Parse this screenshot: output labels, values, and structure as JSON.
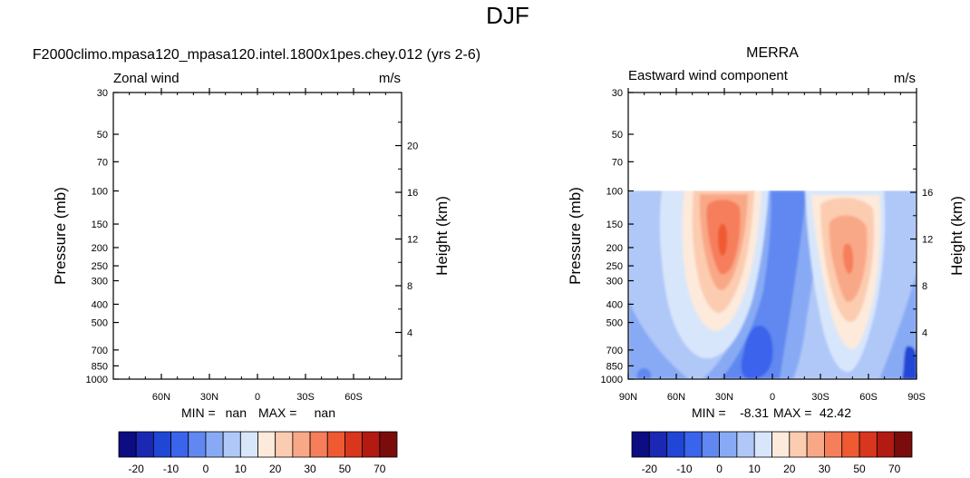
{
  "title": "DJF",
  "panels": [
    {
      "title": "F2000climo.mpasa120_mpasa120.intel.1800x1pes.chey.012 (yrs 2-6)",
      "left_label": "Zonal wind",
      "units": "m/s",
      "ylabel": "Pressure (mb)",
      "y2label": "Height (km)",
      "min_label": "MIN =",
      "min_value": "nan",
      "max_label": "MAX =",
      "max_value": "nan"
    },
    {
      "title": "MERRA",
      "left_label": "Eastward wind component",
      "units": "m/s",
      "ylabel": "Pressure (mb)",
      "y2label": "Height (km)",
      "min_label": "MIN =",
      "min_value": "-8.31",
      "max_label": "MAX =",
      "max_value": "42.42"
    }
  ],
  "colorbar": {
    "colors": [
      "#0c0c83",
      "#1a28b4",
      "#2046d6",
      "#3a64ec",
      "#6088f0",
      "#88aaf4",
      "#b0c8f8",
      "#d8e6fb",
      "#fdeadb",
      "#fcccb1",
      "#f9a887",
      "#f67e5b",
      "#ef5a32",
      "#d8361e",
      "#b21a12",
      "#7a0c0c"
    ],
    "labels": [
      "-20",
      "-10",
      "0",
      "10",
      "20",
      "30",
      "50",
      "70"
    ]
  },
  "chart_data": [
    {
      "type": "contour",
      "panel": "model",
      "x_ticks": [
        "60N",
        "30N",
        "0",
        "30S",
        "60S"
      ],
      "x_tick_degrees": [
        60,
        30,
        0,
        -30,
        -60
      ],
      "xlim_degrees": [
        90,
        -90
      ],
      "x_tick_labels_visible_at_edges": false,
      "pressure_ticks": [
        30,
        50,
        70,
        100,
        150,
        200,
        250,
        300,
        400,
        500,
        700,
        850,
        1000
      ],
      "height_ticks_km": [
        4,
        8,
        12,
        16,
        20
      ],
      "ylim_mb": [
        1000,
        30
      ],
      "field": "nan (no data)"
    },
    {
      "type": "contour",
      "panel": "MERRA",
      "x_ticks": [
        "90N",
        "60N",
        "30N",
        "0",
        "30S",
        "60S",
        "90S"
      ],
      "x_tick_degrees": [
        90,
        60,
        30,
        0,
        -30,
        -60,
        -90
      ],
      "xlim_degrees": [
        90,
        -90
      ],
      "pressure_ticks": [
        30,
        50,
        70,
        100,
        150,
        200,
        250,
        300,
        400,
        500,
        700,
        850,
        1000
      ],
      "height_ticks_km": [
        4,
        8,
        12,
        16
      ],
      "ylim_mb": [
        1000,
        30
      ],
      "data_top_mb": 100,
      "min": -8.31,
      "max": 42.42,
      "contour_levels": [
        -20,
        -15,
        -10,
        -5,
        0,
        5,
        10,
        15,
        20,
        25,
        30,
        40,
        50,
        60,
        70
      ],
      "jets": [
        {
          "name": "northern jet",
          "lat": 30,
          "pressure_mb": 200,
          "peak_ms": 42.42
        },
        {
          "name": "southern jet",
          "lat": -47,
          "pressure_mb": 250,
          "peak_ms": 30
        }
      ],
      "easterlies": [
        {
          "name": "tropical easterlies",
          "lat": 5,
          "pressure_mb": 850,
          "min_ms": -8.31
        }
      ]
    }
  ]
}
